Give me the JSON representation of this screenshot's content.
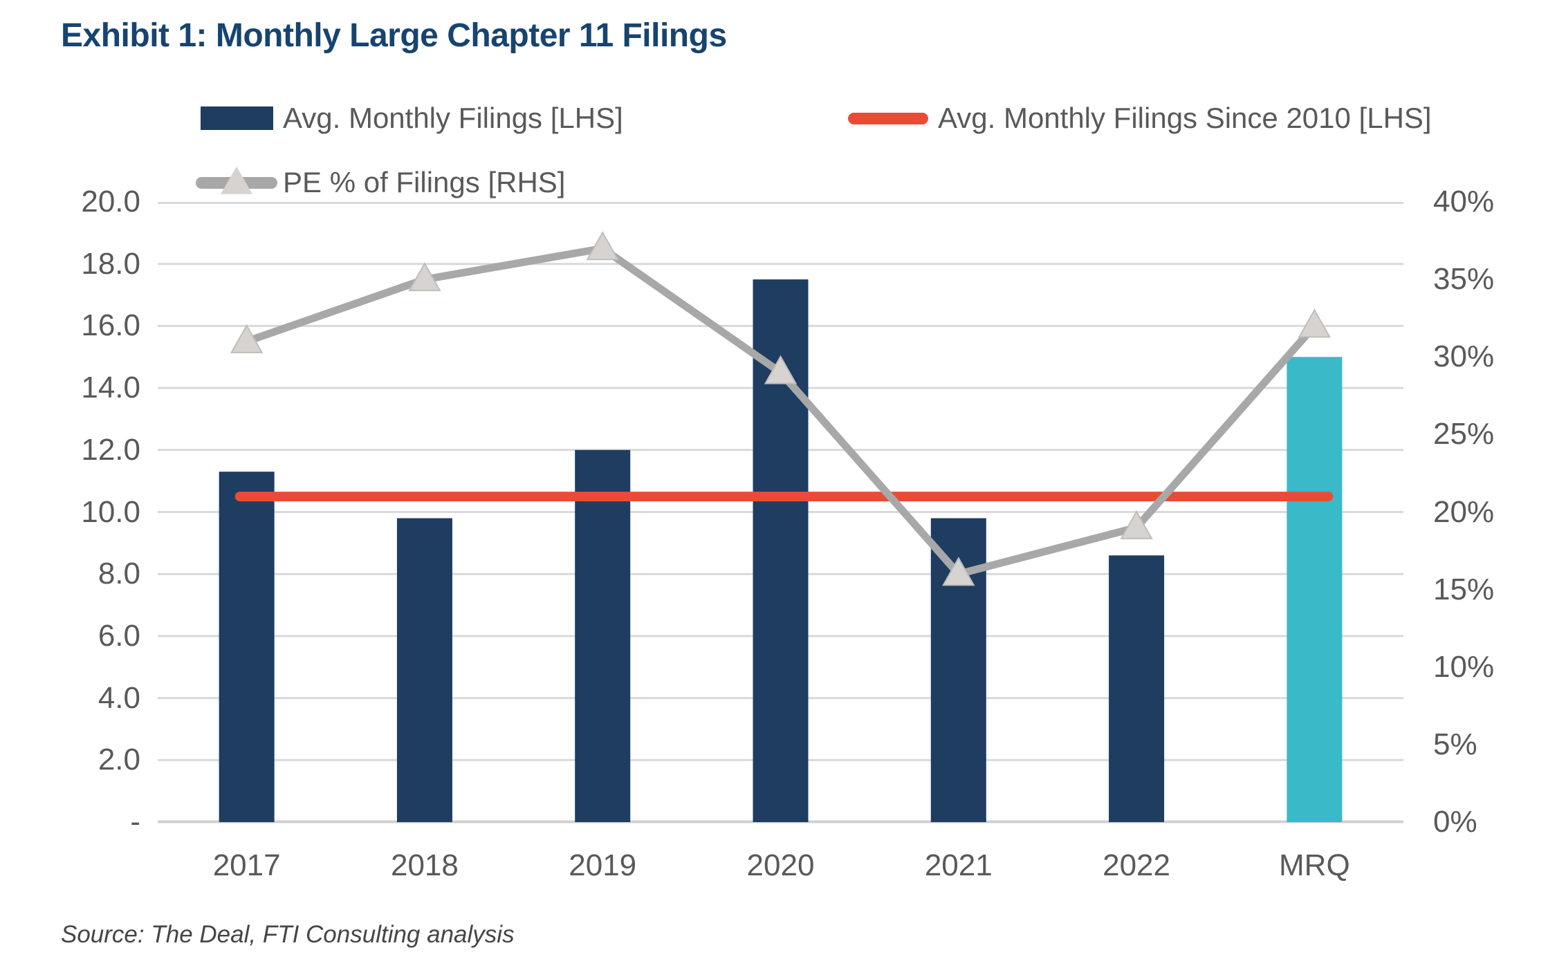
{
  "title": "Exhibit 1: Monthly Large Chapter 11 Filings",
  "source": "Source: The Deal, FTI Consulting analysis",
  "legend": [
    {
      "label": "Avg. Monthly Filings [LHS]",
      "swatch": "bar",
      "color": "#1e3d60"
    },
    {
      "label": "Avg. Monthly Filings Since 2010 [LHS]",
      "swatch": "line",
      "color": "#e94c35"
    },
    {
      "label": "PE % of Filings [RHS]",
      "swatch": "line-triangle",
      "color": "#a8a8a8",
      "marker_color": "#d6d3d0"
    }
  ],
  "colors": {
    "bar_navy": "#1e3d60",
    "bar_teal": "#3ab9c9",
    "avg_line_red": "#e94c35",
    "pe_line_gray": "#a8a8a8",
    "pe_marker_fill": "#d6d3d0",
    "pe_marker_stroke": "#c0bdba",
    "gridline": "#d9d9d9",
    "baseline": "#d1d1d1",
    "axis_text": "#595959",
    "title_text": "#17446f"
  },
  "chart_data": {
    "type": "bar",
    "subtype": "combo-bar-line-dual-axis",
    "categories": [
      "2017",
      "2018",
      "2019",
      "2020",
      "2021",
      "2022",
      "MRQ"
    ],
    "series": [
      {
        "name": "Avg. Monthly Filings [LHS]",
        "type": "bar",
        "axis": "left",
        "values": [
          11.3,
          9.8,
          12.0,
          17.5,
          9.8,
          8.6,
          15.0
        ],
        "bar_colors": [
          "#1e3d60",
          "#1e3d60",
          "#1e3d60",
          "#1e3d60",
          "#1e3d60",
          "#1e3d60",
          "#3ab9c9"
        ]
      },
      {
        "name": "Avg. Monthly Filings Since 2010 [LHS]",
        "type": "line",
        "axis": "left",
        "constant_value": 10.5,
        "color": "#e94c35"
      },
      {
        "name": "PE % of Filings [RHS]",
        "type": "line",
        "axis": "right",
        "values": [
          31,
          35,
          37,
          29,
          16,
          19,
          32
        ],
        "unit": "%",
        "color": "#a8a8a8",
        "marker": "triangle",
        "marker_color": "#d6d3d0"
      }
    ],
    "left_axis": {
      "min": 0,
      "max": 20,
      "step": 2,
      "tick_labels": [
        "20.0",
        "18.0",
        "16.0",
        "14.0",
        "12.0",
        "10.0",
        "8.0",
        "6.0",
        "4.0",
        "2.0",
        "-"
      ]
    },
    "right_axis": {
      "min": 0,
      "max": 40,
      "step": 5,
      "tick_labels": [
        "40%",
        "35%",
        "30%",
        "25%",
        "20%",
        "15%",
        "10%",
        "5%",
        "0%"
      ]
    },
    "gridlines": true,
    "legend_position": "top"
  }
}
